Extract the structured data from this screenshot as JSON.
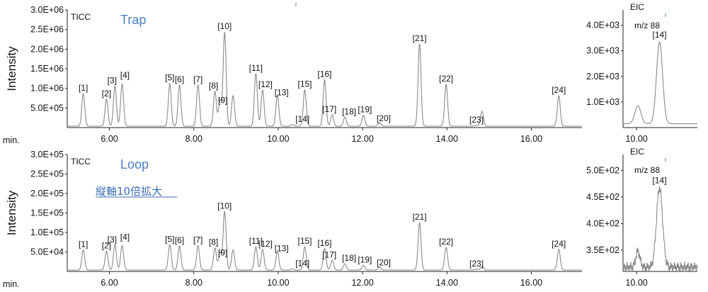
{
  "chart_data": [
    {
      "type": "line",
      "panel": "top-main",
      "tag": "TICC",
      "title": "Trap",
      "ylabel": "Intensity",
      "xlabel": "min.",
      "xlim": [
        5.0,
        17.2
      ],
      "ylim": [
        0,
        3000000
      ],
      "x_ticks": [
        6.0,
        8.0,
        10.0,
        12.0,
        14.0,
        16.0
      ],
      "x_tick_labels": [
        "6.00",
        "8.00",
        "10.00",
        "12.00",
        "14.00",
        "16.00"
      ],
      "y_ticks": [
        500000,
        1000000,
        1500000,
        2000000,
        2500000,
        3000000
      ],
      "y_tick_labels": [
        "5.0E+05",
        "1.0E+06",
        "1.5E+06",
        "2.0E+06",
        "2.5E+06",
        "3.0E+06"
      ],
      "peaks": [
        {
          "label": "[1]",
          "rt": 5.38,
          "height": 830000
        },
        {
          "label": "[2]",
          "rt": 5.93,
          "height": 690000
        },
        {
          "label": "[3]",
          "rt": 6.13,
          "height": 1020000
        },
        {
          "label": "[4]",
          "rt": 6.3,
          "height": 1080000
        },
        {
          "label": "[5]",
          "rt": 7.43,
          "height": 1090000
        },
        {
          "label": "[6]",
          "rt": 7.66,
          "height": 1050000
        },
        {
          "label": "[7]",
          "rt": 8.1,
          "height": 1050000
        },
        {
          "label": "[8]",
          "rt": 8.5,
          "height": 890000
        },
        {
          "label": "[9]",
          "rt": 8.62,
          "height": 660000
        },
        {
          "label": "[10]",
          "rt": 8.73,
          "height": 2400000
        },
        {
          "label": "",
          "rt": 8.93,
          "height": 780000
        },
        {
          "label": "[11]",
          "rt": 9.47,
          "height": 1340000
        },
        {
          "label": "[12]",
          "rt": 9.63,
          "height": 920000
        },
        {
          "label": "[13]",
          "rt": 9.98,
          "height": 790000
        },
        {
          "label": "[14]",
          "rt": 10.34,
          "height": 40000
        },
        {
          "label": "[15]",
          "rt": 10.63,
          "height": 930000
        },
        {
          "label": "[16]",
          "rt": 11.1,
          "height": 1180000
        },
        {
          "label": "[17]",
          "rt": 11.28,
          "height": 290000
        },
        {
          "label": "[18]",
          "rt": 11.58,
          "height": 230000
        },
        {
          "label": "[19]",
          "rt": 12.02,
          "height": 280000
        },
        {
          "label": "[20]",
          "rt": 12.4,
          "height": 90000
        },
        {
          "label": "[21]",
          "rt": 13.35,
          "height": 2100000
        },
        {
          "label": "[22]",
          "rt": 13.98,
          "height": 1070000
        },
        {
          "label": "[23]",
          "rt": 14.7,
          "height": 20000
        },
        {
          "label": "",
          "rt": 14.83,
          "height": 380000
        },
        {
          "label": "[24]",
          "rt": 16.65,
          "height": 780000
        }
      ]
    },
    {
      "type": "line",
      "panel": "top-eic",
      "tag": "EIC",
      "mz": "m/z 88",
      "xlim": [
        9.8,
        10.9
      ],
      "ylim": [
        0,
        4600
      ],
      "x_ticks": [
        10.0
      ],
      "x_tick_labels": [
        "10.00"
      ],
      "y_ticks": [
        1000,
        2000,
        3000,
        4000
      ],
      "y_tick_labels": [
        "1.0E+03",
        "2.0E+03",
        "3.0E+03",
        "4.0E+03"
      ],
      "peaks": [
        {
          "label": "",
          "rt": 10.02,
          "height": 700
        },
        {
          "label": "[14]",
          "rt": 10.34,
          "height": 3200
        }
      ]
    },
    {
      "type": "line",
      "panel": "bottom-main",
      "tag": "TICC",
      "title": "Loop",
      "note": "縦軸10倍拡大",
      "ylabel": "Intensity",
      "xlabel": "min.",
      "xlim": [
        5.0,
        17.2
      ],
      "ylim": [
        0,
        300000
      ],
      "x_ticks": [
        6.0,
        8.0,
        10.0,
        12.0,
        14.0,
        16.0
      ],
      "x_tick_labels": [
        "6.00",
        "8.00",
        "10.00",
        "12.00",
        "14.00",
        "16.00"
      ],
      "y_ticks": [
        50000,
        100000,
        150000,
        200000,
        250000,
        300000
      ],
      "y_tick_labels": [
        "5.0E+04",
        "1.0E+05",
        "1.5E+05",
        "2.0E+05",
        "2.5E+05",
        "3.0E+05"
      ],
      "peaks": [
        {
          "label": "[1]",
          "rt": 5.38,
          "height": 52000
        },
        {
          "label": "[2]",
          "rt": 5.93,
          "height": 48000
        },
        {
          "label": "[3]",
          "rt": 6.13,
          "height": 64000
        },
        {
          "label": "[4]",
          "rt": 6.3,
          "height": 63000
        },
        {
          "label": "[5]",
          "rt": 7.43,
          "height": 65000
        },
        {
          "label": "[6]",
          "rt": 7.66,
          "height": 62000
        },
        {
          "label": "[7]",
          "rt": 8.1,
          "height": 63000
        },
        {
          "label": "[8]",
          "rt": 8.5,
          "height": 57000
        },
        {
          "label": "[9]",
          "rt": 8.62,
          "height": 45000
        },
        {
          "label": "[10]",
          "rt": 8.73,
          "height": 150000
        },
        {
          "label": "",
          "rt": 8.93,
          "height": 52000
        },
        {
          "label": "[11]",
          "rt": 9.47,
          "height": 60000
        },
        {
          "label": "[12]",
          "rt": 9.63,
          "height": 53000
        },
        {
          "label": "[13]",
          "rt": 9.98,
          "height": 48000
        },
        {
          "label": "[14]",
          "rt": 10.34,
          "height": 3000
        },
        {
          "label": "[15]",
          "rt": 10.63,
          "height": 60000
        },
        {
          "label": "[16]",
          "rt": 11.1,
          "height": 55000
        },
        {
          "label": "[17]",
          "rt": 11.28,
          "height": 25000
        },
        {
          "label": "[18]",
          "rt": 11.58,
          "height": 16000
        },
        {
          "label": "[19]",
          "rt": 12.02,
          "height": 12000
        },
        {
          "label": "[20]",
          "rt": 12.4,
          "height": 8000
        },
        {
          "label": "[21]",
          "rt": 13.35,
          "height": 122000
        },
        {
          "label": "[22]",
          "rt": 13.98,
          "height": 58000
        },
        {
          "label": "[23]",
          "rt": 14.7,
          "height": 2000
        },
        {
          "label": "",
          "rt": 14.83,
          "height": 9000
        },
        {
          "label": "[24]",
          "rt": 16.65,
          "height": 53000
        }
      ]
    },
    {
      "type": "line",
      "panel": "bottom-eic",
      "tag": "EIC",
      "mz": "m/z 88",
      "xlim": [
        9.8,
        10.9
      ],
      "ylim": [
        310,
        530
      ],
      "x_ticks": [
        10.0
      ],
      "x_tick_labels": [
        "10.00"
      ],
      "y_ticks": [
        350,
        400,
        450,
        500
      ],
      "y_tick_labels": [
        "3.5E+02",
        "4.0E+02",
        "4.5E+02",
        "5.0E+02"
      ],
      "peaks": [
        {
          "label": "",
          "rt": 10.02,
          "height": 30
        },
        {
          "label": "[14]",
          "rt": 10.34,
          "height": 150
        }
      ]
    }
  ]
}
